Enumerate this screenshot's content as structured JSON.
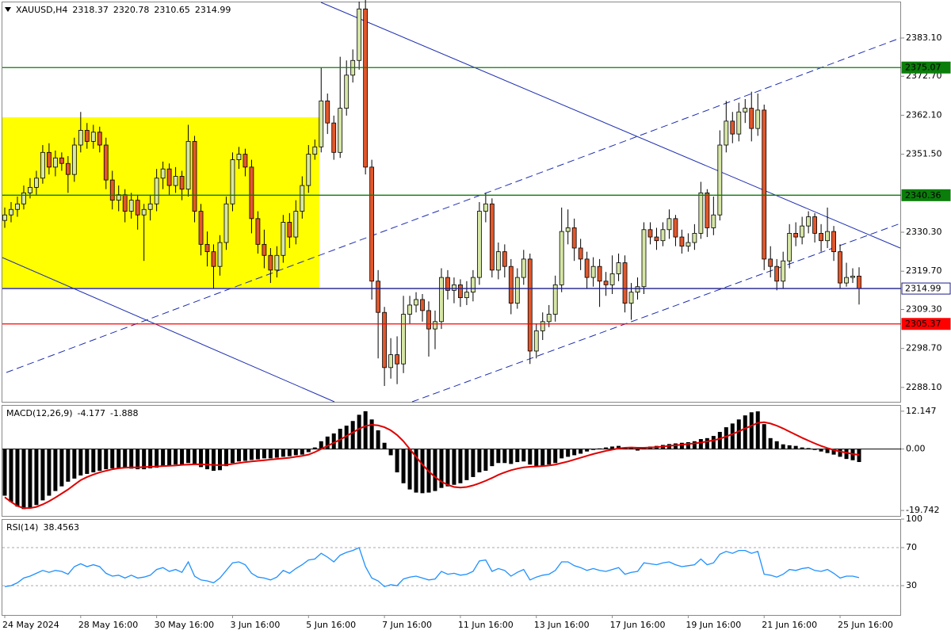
{
  "chart_data": [
    {
      "type": "candlestick",
      "title": "XAUUSD,H4",
      "categories": [
        "24 May 2024",
        null,
        null,
        null,
        null,
        null,
        null,
        null,
        null,
        null,
        null,
        null,
        "28 May 16:00",
        null,
        null,
        null,
        null,
        null,
        null,
        null,
        null,
        null,
        null,
        null,
        "30 May 16:00",
        null,
        null,
        null,
        null,
        null,
        null,
        null,
        null,
        null,
        null,
        null,
        "3 Jun 16:00",
        null,
        null,
        null,
        null,
        null,
        null,
        null,
        null,
        null,
        null,
        null,
        "5 Jun 16:00",
        null,
        null,
        null,
        null,
        null,
        null,
        null,
        null,
        null,
        null,
        null,
        "7 Jun 16:00",
        null,
        null,
        null,
        null,
        null,
        null,
        null,
        null,
        null,
        null,
        null,
        "11 Jun 16:00",
        null,
        null,
        null,
        null,
        null,
        null,
        null,
        null,
        null,
        null,
        null,
        "13 Jun 16:00",
        null,
        null,
        null,
        null,
        null,
        null,
        null,
        null,
        null,
        null,
        null,
        "17 Jun 16:00",
        null,
        null,
        null,
        null,
        null,
        null,
        null,
        null,
        null,
        null,
        null,
        "19 Jun 16:00",
        null,
        null,
        null,
        null,
        null,
        null,
        null,
        null,
        null,
        null,
        null,
        "21 Jun 16:00",
        null,
        null,
        null,
        null,
        null,
        null,
        null,
        null,
        null,
        null,
        null,
        "25 Jun 16:00",
        null,
        null,
        null
      ],
      "open": [
        2333.5,
        2335.0,
        2336.5,
        2338.0,
        2341.0,
        2342.5,
        2345.0,
        2352.0,
        2348.0,
        2350.5,
        2349.0,
        2346.0,
        2354.0,
        2358.0,
        2355.0,
        2357.5,
        2354.0,
        2344.5,
        2339.0,
        2340.5,
        2336.0,
        2339.0,
        2335.0,
        2336.5,
        2338.0,
        2345.0,
        2347.5,
        2343.0,
        2345.5,
        2342.0,
        2355.0,
        2336.0,
        2327.0,
        2325.0,
        2321.0,
        2327.5,
        2338.0,
        2350.0,
        2351.5,
        2348.0,
        2334.0,
        2327.0,
        2324.0,
        2320.0,
        2324.0,
        2333.0,
        2329.0,
        2336.0,
        2343.0,
        2351.5,
        2353.5,
        2366.0,
        2360.0,
        2352.0,
        2364.0,
        2373.0,
        2377.0,
        2391.0,
        2348.0,
        2317.0,
        2308.5,
        2293.5,
        2297.0,
        2294.5,
        2308.0,
        2310.5,
        2312.0,
        2309.0,
        2304.0,
        2306.0,
        2318.0,
        2314.5,
        2316.0,
        2312.5,
        2314.0,
        2318.0,
        2336.0,
        2338.0,
        2320.0,
        2325.0,
        2321.0,
        2311.0,
        2318.0,
        2323.0,
        2298.0,
        2303.5,
        2306.0,
        2308.0,
        2316.0,
        2330.5,
        2331.5,
        2326.0,
        2323.0,
        2318.0,
        2321.0,
        2317.0,
        2316.0,
        2319.0,
        2322.0,
        2311.0,
        2314.0,
        2315.5,
        2331.0,
        2329.0,
        2328.0,
        2331.0,
        2334.0,
        2329.0,
        2326.5,
        2327.5,
        2330.0,
        2341.0,
        2331.5,
        2335.0,
        2354.0,
        2360.5,
        2357.0,
        2363.0,
        2364.0,
        2358.5,
        2363.5,
        2323.0,
        2321.0,
        2317.0,
        2322.5,
        2330.0,
        2329.0,
        2332.0,
        2334.5,
        2330.0,
        2328.0,
        2330.5,
        2325.0,
        2316.5,
        2318.0,
        2318.37
      ],
      "high": [
        2337.0,
        2338.5,
        2340.0,
        2343.0,
        2345.0,
        2347.0,
        2354.0,
        2354.5,
        2352.5,
        2352.0,
        2351.0,
        2356.0,
        2363.0,
        2360.0,
        2359.5,
        2359.0,
        2356.0,
        2347.0,
        2343.0,
        2342.0,
        2341.0,
        2340.5,
        2338.0,
        2340.5,
        2347.5,
        2349.5,
        2349.0,
        2348.0,
        2347.0,
        2359.5,
        2356.5,
        2338.0,
        2330.5,
        2327.0,
        2329.5,
        2340.0,
        2352.0,
        2353.5,
        2353.0,
        2350.0,
        2336.0,
        2331.0,
        2326.0,
        2326.5,
        2335.0,
        2335.5,
        2339.0,
        2345.5,
        2354.0,
        2355.5,
        2375.0,
        2368.0,
        2362.0,
        2378.0,
        2377.0,
        2380.0,
        2393.0,
        2393.5,
        2350.0,
        2320.0,
        2310.0,
        2301.5,
        2302.0,
        2313.0,
        2313.0,
        2314.0,
        2313.5,
        2311.5,
        2309.0,
        2320.5,
        2320.0,
        2318.0,
        2317.5,
        2317.0,
        2320.0,
        2338.5,
        2341.0,
        2339.5,
        2327.5,
        2327.0,
        2323.0,
        2320.5,
        2325.5,
        2324.5,
        2305.5,
        2308.5,
        2310.5,
        2318.5,
        2337.0,
        2336.5,
        2334.0,
        2328.5,
        2325.0,
        2323.5,
        2323.0,
        2319.5,
        2324.0,
        2324.5,
        2324.0,
        2316.5,
        2318.0,
        2333.0,
        2333.0,
        2331.5,
        2333.0,
        2336.5,
        2335.0,
        2331.0,
        2330.0,
        2332.5,
        2344.0,
        2342.0,
        2340.0,
        2358.0,
        2366.0,
        2363.0,
        2365.5,
        2366.5,
        2368.5,
        2368.0,
        2365.0,
        2326.5,
        2323.0,
        2325.0,
        2332.5,
        2333.0,
        2334.5,
        2336.0,
        2335.5,
        2332.5,
        2337.0,
        2332.0,
        2327.0,
        2322.0,
        2320.5,
        2320.78
      ],
      "low": [
        2331.5,
        2333.0,
        2334.5,
        2336.5,
        2339.5,
        2340.5,
        2343.5,
        2346.0,
        2345.5,
        2347.0,
        2341.0,
        2344.0,
        2352.0,
        2353.0,
        2353.0,
        2352.0,
        2342.0,
        2336.5,
        2336.0,
        2333.0,
        2334.0,
        2331.0,
        2322.5,
        2333.5,
        2336.0,
        2342.0,
        2340.5,
        2341.0,
        2339.0,
        2340.0,
        2333.0,
        2324.0,
        2321.0,
        2315.0,
        2318.5,
        2325.5,
        2336.0,
        2347.5,
        2345.5,
        2330.0,
        2324.5,
        2320.5,
        2316.5,
        2318.0,
        2322.0,
        2326.0,
        2327.0,
        2334.0,
        2341.0,
        2350.0,
        2352.0,
        2357.0,
        2350.0,
        2350.5,
        2362.0,
        2371.0,
        2374.5,
        2346.0,
        2312.0,
        2296.0,
        2288.5,
        2290.5,
        2289.0,
        2292.0,
        2305.5,
        2308.5,
        2306.0,
        2296.5,
        2298.5,
        2304.0,
        2312.0,
        2311.0,
        2310.0,
        2310.5,
        2311.5,
        2316.0,
        2333.0,
        2318.0,
        2317.5,
        2318.0,
        2308.0,
        2309.5,
        2316.0,
        2294.5,
        2296.0,
        2301.0,
        2304.5,
        2306.0,
        2314.0,
        2327.0,
        2322.5,
        2320.0,
        2315.0,
        2315.5,
        2310.0,
        2313.0,
        2313.5,
        2317.0,
        2308.5,
        2306.5,
        2312.0,
        2313.5,
        2327.0,
        2325.5,
        2326.5,
        2328.5,
        2326.5,
        2324.5,
        2325.0,
        2325.5,
        2328.5,
        2329.0,
        2329.5,
        2333.5,
        2352.0,
        2354.5,
        2355.0,
        2360.0,
        2355.0,
        2356.5,
        2320.0,
        2318.0,
        2314.5,
        2315.0,
        2320.5,
        2326.5,
        2327.0,
        2330.0,
        2327.5,
        2325.0,
        2326.0,
        2322.5,
        2315.0,
        2315.5,
        2316.5,
        2310.65
      ],
      "close": [
        2335.0,
        2336.5,
        2338.0,
        2341.0,
        2342.5,
        2345.0,
        2352.0,
        2348.0,
        2350.5,
        2349.0,
        2346.0,
        2354.0,
        2358.0,
        2355.0,
        2357.5,
        2354.0,
        2344.5,
        2339.0,
        2340.5,
        2336.0,
        2339.0,
        2335.0,
        2336.5,
        2338.0,
        2345.0,
        2347.5,
        2343.0,
        2345.5,
        2342.0,
        2355.0,
        2336.0,
        2327.0,
        2325.0,
        2321.0,
        2327.5,
        2338.0,
        2350.0,
        2351.5,
        2348.0,
        2334.0,
        2327.0,
        2324.0,
        2320.0,
        2324.0,
        2333.0,
        2329.0,
        2336.0,
        2343.0,
        2351.5,
        2353.5,
        2366.0,
        2360.0,
        2352.0,
        2364.0,
        2373.0,
        2377.0,
        2391.0,
        2348.0,
        2317.0,
        2308.5,
        2293.5,
        2297.0,
        2294.5,
        2308.0,
        2310.5,
        2312.0,
        2309.0,
        2304.0,
        2306.0,
        2318.0,
        2314.5,
        2316.0,
        2312.5,
        2314.0,
        2318.0,
        2336.0,
        2338.0,
        2320.0,
        2325.0,
        2321.0,
        2311.0,
        2318.0,
        2323.0,
        2298.0,
        2303.5,
        2306.0,
        2308.0,
        2316.0,
        2330.5,
        2331.5,
        2326.0,
        2323.0,
        2318.0,
        2321.0,
        2317.0,
        2316.0,
        2319.0,
        2322.0,
        2311.0,
        2314.0,
        2315.5,
        2331.0,
        2329.0,
        2328.0,
        2331.0,
        2334.0,
        2329.0,
        2326.5,
        2327.5,
        2330.0,
        2341.0,
        2331.5,
        2335.0,
        2354.0,
        2360.5,
        2357.0,
        2363.0,
        2364.0,
        2358.5,
        2363.5,
        2323.0,
        2321.0,
        2317.0,
        2322.5,
        2330.0,
        2329.0,
        2332.0,
        2334.5,
        2330.0,
        2328.0,
        2330.5,
        2325.0,
        2316.5,
        2318.0,
        2318.37,
        2314.99
      ],
      "bull_color": "#d6e6a6",
      "bear_color": "#e2572b",
      "ylim": [
        2284.2,
        2393.0
      ],
      "yticks": [
        {
          "value": 2383.1,
          "label": "2383.10"
        },
        {
          "value": 2372.7,
          "label": "2372.70"
        },
        {
          "value": 2362.1,
          "label": "2362.10"
        },
        {
          "value": 2351.5,
          "label": "2351.50"
        },
        {
          "value": 2330.3,
          "label": "2330.30"
        },
        {
          "value": 2319.7,
          "label": "2319.70"
        },
        {
          "value": 2309.3,
          "label": "2309.30"
        },
        {
          "value": 2298.7,
          "label": "2298.70"
        },
        {
          "value": 2288.1,
          "label": "2288.10"
        }
      ],
      "levels": [
        {
          "value": 2375.07,
          "color": "#0a7d0a",
          "label_fill": "#0a7d0a"
        },
        {
          "value": 2340.36,
          "color": "#0a7d0a",
          "label_fill": "#0a7d0a"
        },
        {
          "value": 2314.99,
          "color": "#1c1c8c",
          "label_fill": "#ffffff"
        },
        {
          "value": 2305.37,
          "color": "#ff0000",
          "label_fill": "#ff0000"
        }
      ]
    },
    {
      "type": "macd",
      "title": "MACD(12,26,9)",
      "series": [
        {
          "color": "#000000",
          "values": [
            -15,
            -17,
            -18.5,
            -19.3,
            -19,
            -18,
            -16.5,
            -15,
            -13.5,
            -12,
            -10.5,
            -9.5,
            -8.5,
            -8,
            -7.5,
            -7,
            -6.5,
            -6.2,
            -6,
            -6,
            -6.3,
            -6.5,
            -6.5,
            -6.2,
            -6,
            -5.5,
            -5.2,
            -5,
            -5,
            -4.5,
            -5,
            -5.8,
            -6.5,
            -7,
            -6.8,
            -5.5,
            -4.5,
            -4,
            -3.8,
            -3.5,
            -3.3,
            -3,
            -3,
            -2.8,
            -2.5,
            -2.3,
            -2,
            -1.8,
            -1,
            0.5,
            2.5,
            4,
            5,
            6.5,
            7.5,
            9,
            11,
            12.147,
            9.5,
            6,
            2,
            -2,
            -7.5,
            -11,
            -13,
            -14,
            -14.2,
            -14,
            -13.5,
            -12.5,
            -12,
            -11.5,
            -11,
            -10,
            -9,
            -7.5,
            -7,
            -5.5,
            -4.5,
            -4.5,
            -4.8,
            -4.2,
            -4,
            -5,
            -5.5,
            -5.3,
            -5,
            -4.5,
            -3,
            -2.5,
            -2,
            -1.5,
            -0.8,
            -0.3,
            0.2,
            0.5,
            0.8,
            1,
            0.5,
            0.3,
            -0.5,
            0.5,
            0.8,
            1,
            1.3,
            1.6,
            1.8,
            2,
            2.2,
            2.5,
            3.2,
            3.5,
            4.2,
            5.5,
            7,
            8.2,
            9.5,
            10.8,
            11.8,
            12.1,
            8,
            3.5,
            2.5,
            1.5,
            1.2,
            1,
            0.5,
            0.3,
            -0.3,
            -0.8,
            -1.3,
            -1.8,
            -2.5,
            -3.2,
            -3.6,
            -4.177
          ]
        },
        {
          "color": "#e00000",
          "values": [
            -15.5,
            -17,
            -18.3,
            -19,
            -19,
            -18.6,
            -17.8,
            -16.8,
            -15.6,
            -14.3,
            -13,
            -11.5,
            -10,
            -9,
            -8.2,
            -7.5,
            -7,
            -6.5,
            -6.2,
            -6,
            -5.9,
            -5.9,
            -5.8,
            -5.7,
            -5.6,
            -5.5,
            -5.4,
            -5.3,
            -5.1,
            -5,
            -4.9,
            -4.9,
            -5,
            -5.1,
            -5.2,
            -5.1,
            -4.8,
            -4.5,
            -4.2,
            -4,
            -3.8,
            -3.6,
            -3.4,
            -3.2,
            -3,
            -2.8,
            -2.5,
            -2.2,
            -1.8,
            -1,
            0,
            1,
            2,
            3,
            4.2,
            5.3,
            6.5,
            7.4,
            7.8,
            7.6,
            7,
            6,
            4.5,
            2.5,
            0,
            -2.5,
            -5,
            -7.2,
            -9,
            -10.5,
            -11.5,
            -12.2,
            -12.4,
            -12.2,
            -11.7,
            -11,
            -10.2,
            -9.3,
            -8.3,
            -7.5,
            -6.8,
            -6.3,
            -5.9,
            -5.7,
            -5.6,
            -5.5,
            -5.3,
            -5,
            -4.5,
            -4,
            -3.4,
            -2.8,
            -2.2,
            -1.6,
            -1.1,
            -0.6,
            -0.2,
            0.2,
            0.4,
            0.5,
            0.4,
            0.4,
            0.5,
            0.6,
            0.8,
            1,
            1.2,
            1.4,
            1.6,
            1.8,
            2.1,
            2.4,
            2.8,
            3.3,
            4,
            4.8,
            5.7,
            6.6,
            7.5,
            8.4,
            8.6,
            8.2,
            7.5,
            6.6,
            5.6,
            4.6,
            3.6,
            2.7,
            1.8,
            1,
            0.3,
            -0.3,
            -0.8,
            -1.2,
            -1.6,
            -1.888
          ]
        }
      ],
      "ylim": [
        -21.5,
        13.9
      ],
      "yticks": [
        12.147,
        {
          "value": 0,
          "label": "0.00"
        },
        -19.742
      ],
      "grid": "zero"
    },
    {
      "type": "line",
      "title": "RSI(14)",
      "color": "#1e90ff",
      "values": [
        29,
        30,
        33,
        38,
        40,
        43,
        46,
        44,
        46,
        45,
        42,
        50,
        53,
        50,
        52,
        50,
        43,
        40,
        41,
        38,
        41,
        38,
        39,
        41,
        47,
        49,
        45,
        47,
        44,
        55,
        40,
        36,
        35,
        33,
        38,
        46,
        54,
        55,
        52,
        43,
        39,
        38,
        36,
        39,
        46,
        43,
        48,
        52,
        57,
        58,
        64,
        60,
        55,
        62,
        65,
        67,
        70,
        50,
        38,
        35,
        29,
        31,
        30,
        37,
        39,
        40,
        38,
        36,
        37,
        45,
        42,
        43,
        41,
        42,
        45,
        56,
        57,
        45,
        48,
        46,
        40,
        44,
        47,
        36,
        39,
        41,
        42,
        46,
        55,
        55,
        51,
        49,
        46,
        48,
        46,
        45,
        47,
        49,
        42,
        44,
        45,
        54,
        53,
        52,
        54,
        55,
        52,
        50,
        51,
        52,
        58,
        52,
        54,
        63,
        66,
        64,
        67,
        67,
        64,
        66,
        42,
        41,
        39,
        42,
        47,
        46,
        48,
        49,
        46,
        45,
        47,
        43,
        38,
        40,
        40,
        38.4563
      ],
      "ylim": [
        0,
        100
      ],
      "yticks": [
        100,
        70,
        30
      ],
      "grid": "dashed"
    }
  ]
}
